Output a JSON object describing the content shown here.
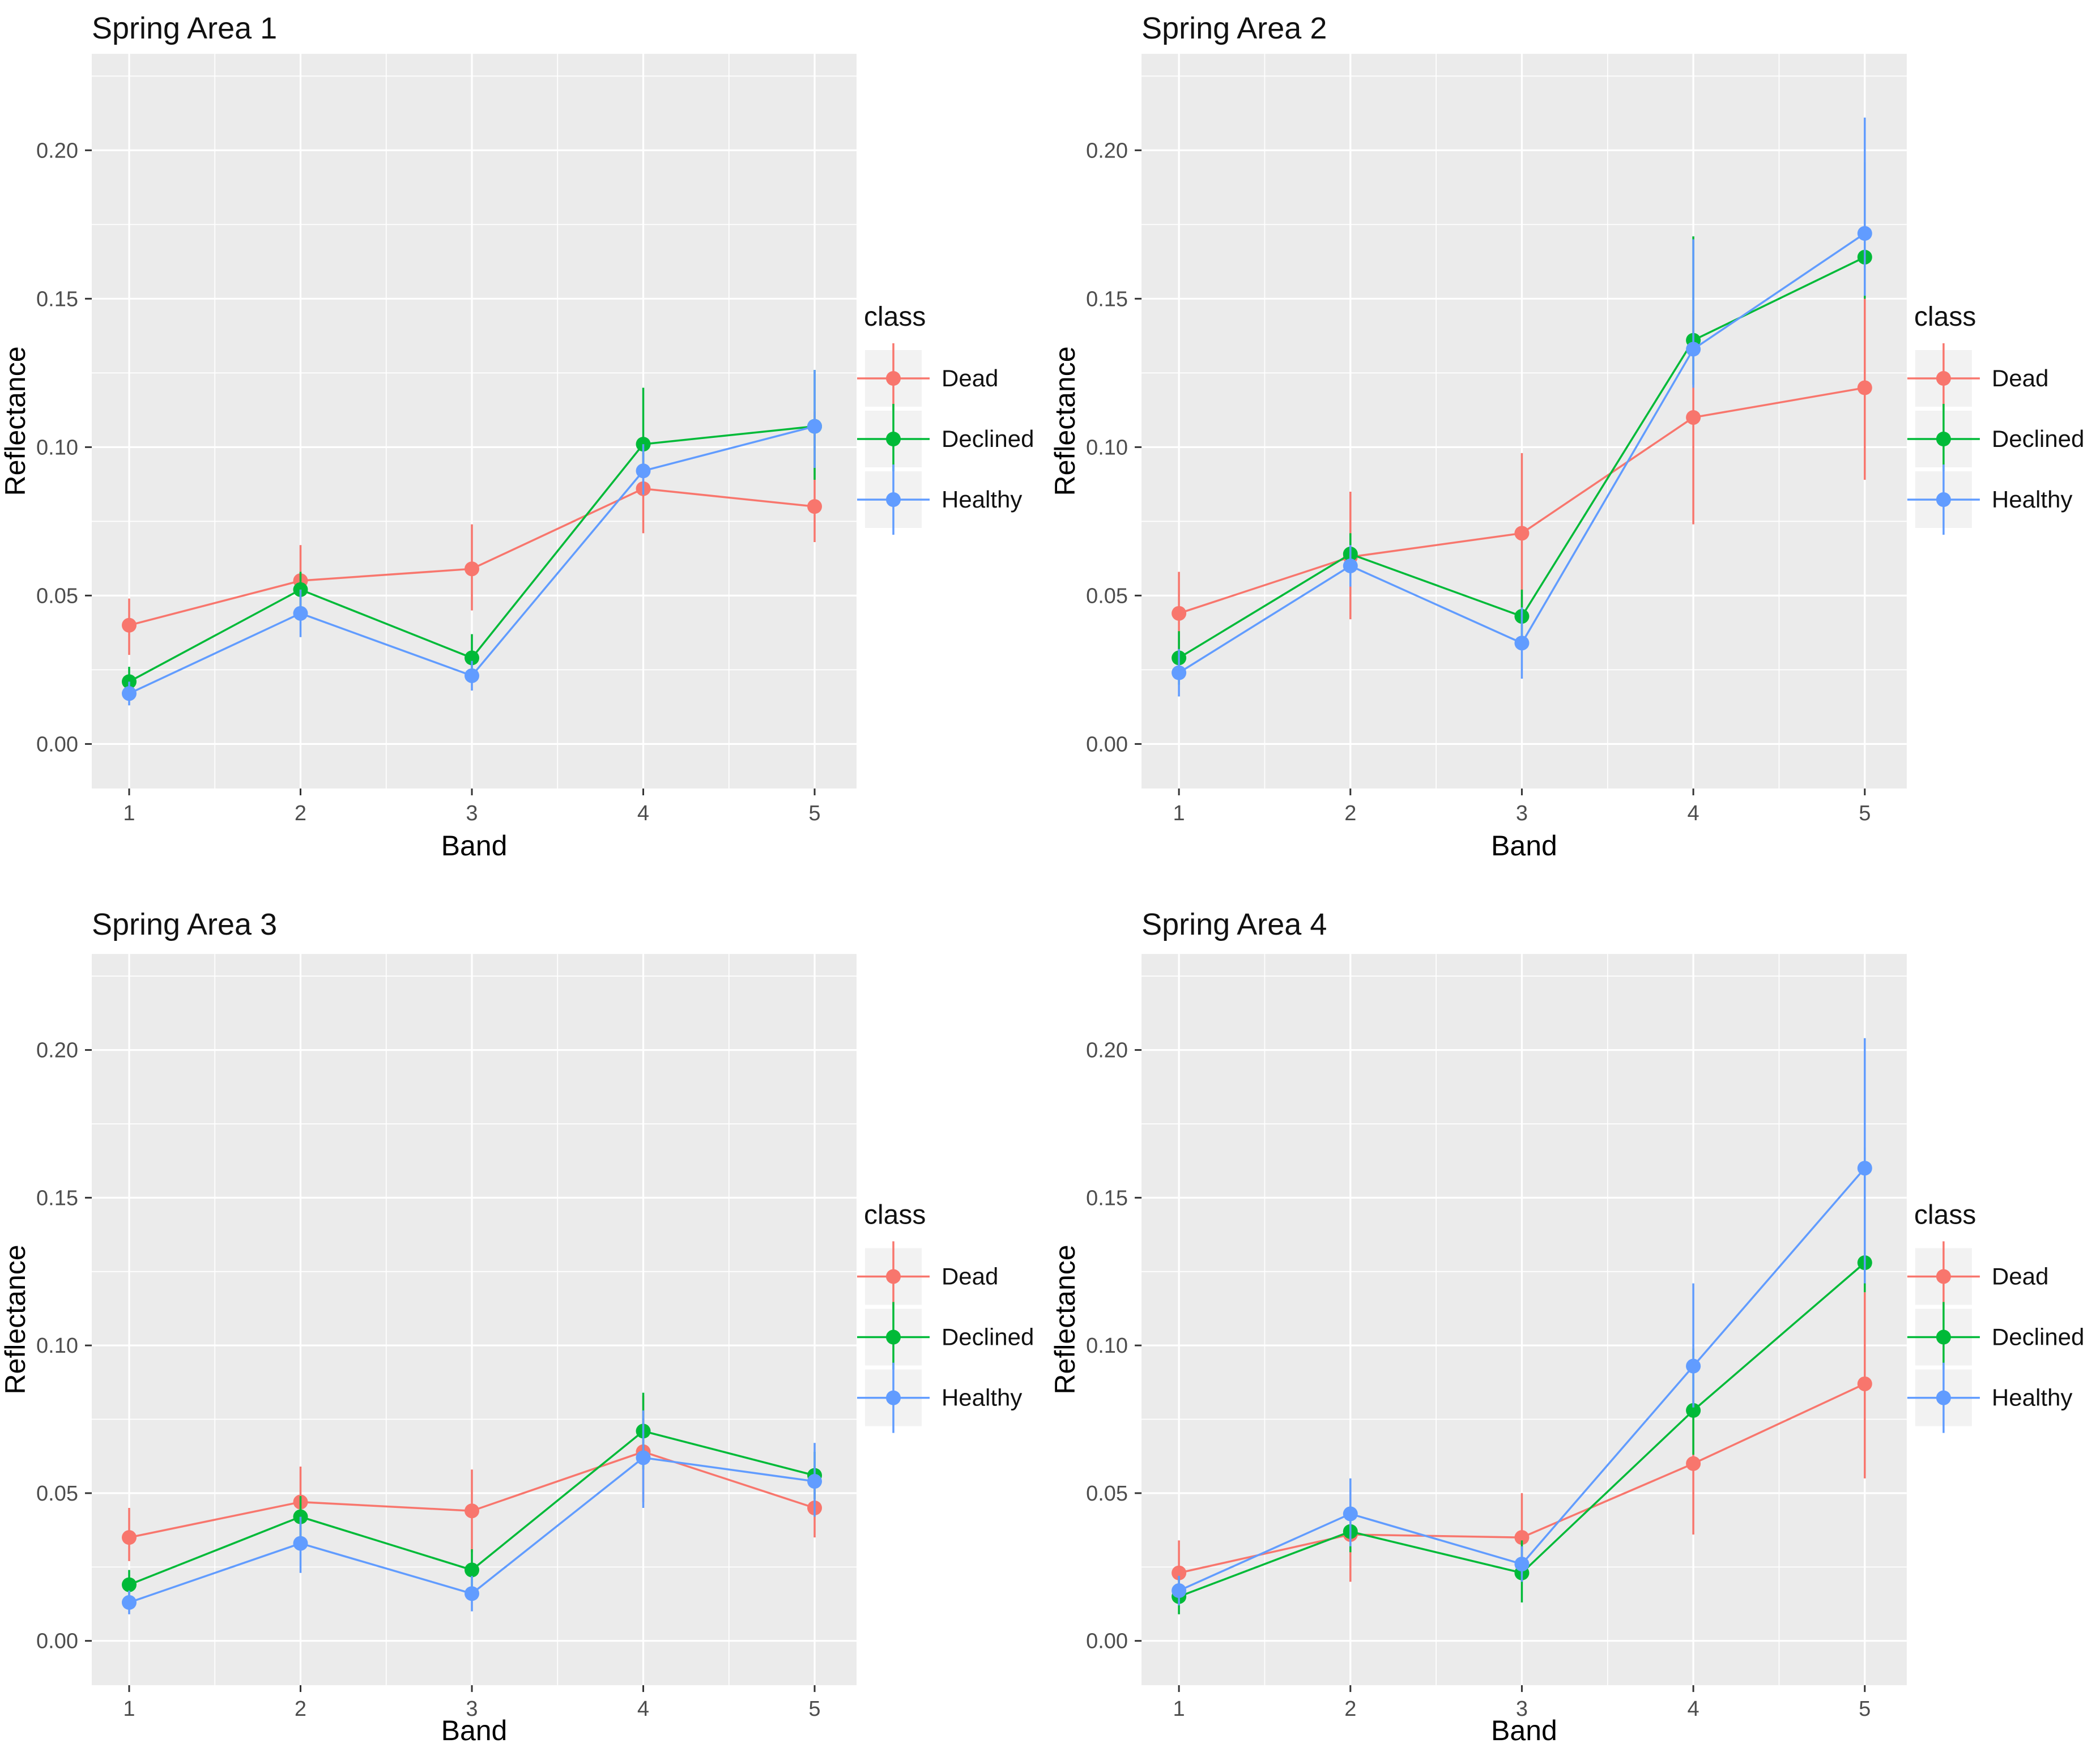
{
  "figure": {
    "background": "#ffffff",
    "panel_background": "#ebebeb",
    "gridline_color": "#ffffff"
  },
  "axes": {
    "x_title": "Band",
    "y_title": "Reflectance",
    "x_tick_labels": [
      "1",
      "2",
      "3",
      "4",
      "5"
    ],
    "x_tick_values": [
      1,
      2,
      3,
      4,
      5
    ],
    "x_minor_values": [
      1.5,
      2.5,
      3.5,
      4.5
    ],
    "y_tick_labels": [
      "0.00",
      "0.05",
      "0.10",
      "0.15",
      "0.20"
    ],
    "y_tick_values": [
      0.0,
      0.05,
      0.1,
      0.15,
      0.2
    ],
    "y_minor_values": [
      0.025,
      0.075,
      0.125,
      0.175,
      0.225
    ],
    "y_range": [
      -0.015,
      0.2325
    ]
  },
  "legend": {
    "title": "class",
    "key_background": "#f2f2f2",
    "items": [
      {
        "label": "Dead",
        "color": "#F8766D",
        "icon": "pointrange-icon"
      },
      {
        "label": "Declined",
        "color": "#00BA38",
        "icon": "pointrange-icon"
      },
      {
        "label": "Healthy",
        "color": "#619CFF",
        "icon": "pointrange-icon"
      }
    ]
  },
  "chart_data": [
    {
      "type": "line",
      "title": "Spring Area 1",
      "xlabel": "Band",
      "ylabel": "Reflectance",
      "x": [
        1,
        2,
        3,
        4,
        5
      ],
      "ylim": [
        -0.015,
        0.2325
      ],
      "legend_position": "right",
      "grid": "on",
      "series": [
        {
          "name": "Dead",
          "values": [
            0.04,
            0.055,
            0.059,
            0.086,
            0.08
          ],
          "ymin": [
            0.03,
            0.044,
            0.045,
            0.071,
            0.068
          ],
          "ymax": [
            0.049,
            0.067,
            0.074,
            0.101,
            0.112
          ]
        },
        {
          "name": "Declined",
          "values": [
            0.021,
            0.052,
            0.029,
            0.101,
            0.107
          ],
          "ymin": [
            0.016,
            0.046,
            0.023,
            0.091,
            0.089
          ],
          "ymax": [
            0.026,
            0.058,
            0.037,
            0.12,
            0.126
          ]
        },
        {
          "name": "Healthy",
          "values": [
            0.017,
            0.044,
            0.023,
            0.092,
            0.107
          ],
          "ymin": [
            0.013,
            0.036,
            0.018,
            0.084,
            0.093
          ],
          "ymax": [
            0.021,
            0.052,
            0.028,
            0.101,
            0.126
          ]
        }
      ]
    },
    {
      "type": "line",
      "title": "Spring Area 2",
      "xlabel": "Band",
      "ylabel": "Reflectance",
      "x": [
        1,
        2,
        3,
        4,
        5
      ],
      "ylim": [
        -0.015,
        0.2325
      ],
      "legend_position": "right",
      "grid": "on",
      "series": [
        {
          "name": "Dead",
          "values": [
            0.044,
            0.063,
            0.071,
            0.11,
            0.12
          ],
          "ymin": [
            0.028,
            0.042,
            0.046,
            0.074,
            0.089
          ],
          "ymax": [
            0.058,
            0.085,
            0.098,
            0.146,
            0.15
          ]
        },
        {
          "name": "Declined",
          "values": [
            0.029,
            0.064,
            0.043,
            0.136,
            0.164
          ],
          "ymin": [
            0.02,
            0.057,
            0.034,
            0.121,
            0.15
          ],
          "ymax": [
            0.038,
            0.071,
            0.052,
            0.171,
            0.196
          ]
        },
        {
          "name": "Healthy",
          "values": [
            0.024,
            0.06,
            0.034,
            0.133,
            0.172
          ],
          "ymin": [
            0.016,
            0.053,
            0.022,
            0.12,
            0.151
          ],
          "ymax": [
            0.032,
            0.067,
            0.046,
            0.17,
            0.211
          ]
        }
      ]
    },
    {
      "type": "line",
      "title": "Spring Area 3",
      "xlabel": "Band",
      "ylabel": "Reflectance",
      "x": [
        1,
        2,
        3,
        4,
        5
      ],
      "ylim": [
        -0.015,
        0.2325
      ],
      "legend_position": "right",
      "grid": "on",
      "series": [
        {
          "name": "Dead",
          "values": [
            0.035,
            0.047,
            0.044,
            0.064,
            0.045
          ],
          "ymin": [
            0.027,
            0.035,
            0.03,
            0.047,
            0.035
          ],
          "ymax": [
            0.045,
            0.059,
            0.058,
            0.083,
            0.055
          ]
        },
        {
          "name": "Declined",
          "values": [
            0.019,
            0.042,
            0.024,
            0.071,
            0.056
          ],
          "ymin": [
            0.014,
            0.035,
            0.017,
            0.058,
            0.048
          ],
          "ymax": [
            0.024,
            0.049,
            0.031,
            0.084,
            0.064
          ]
        },
        {
          "name": "Healthy",
          "values": [
            0.013,
            0.033,
            0.016,
            0.062,
            0.054
          ],
          "ymin": [
            0.009,
            0.023,
            0.01,
            0.045,
            0.042
          ],
          "ymax": [
            0.017,
            0.042,
            0.022,
            0.078,
            0.067
          ]
        }
      ]
    },
    {
      "type": "line",
      "title": "Spring Area 4",
      "xlabel": "Band",
      "ylabel": "Reflectance",
      "x": [
        1,
        2,
        3,
        4,
        5
      ],
      "ylim": [
        -0.015,
        0.2325
      ],
      "legend_position": "right",
      "grid": "on",
      "series": [
        {
          "name": "Dead",
          "values": [
            0.023,
            0.036,
            0.035,
            0.06,
            0.087
          ],
          "ymin": [
            0.014,
            0.02,
            0.022,
            0.036,
            0.055
          ],
          "ymax": [
            0.034,
            0.051,
            0.05,
            0.085,
            0.118
          ]
        },
        {
          "name": "Declined",
          "values": [
            0.015,
            0.037,
            0.023,
            0.078,
            0.128
          ],
          "ymin": [
            0.009,
            0.03,
            0.013,
            0.063,
            0.118
          ],
          "ymax": [
            0.022,
            0.044,
            0.034,
            0.099,
            0.167
          ]
        },
        {
          "name": "Healthy",
          "values": [
            0.017,
            0.043,
            0.026,
            0.093,
            0.16
          ],
          "ymin": [
            0.012,
            0.032,
            0.02,
            0.079,
            0.121
          ],
          "ymax": [
            0.022,
            0.055,
            0.032,
            0.121,
            0.204
          ]
        }
      ]
    }
  ]
}
